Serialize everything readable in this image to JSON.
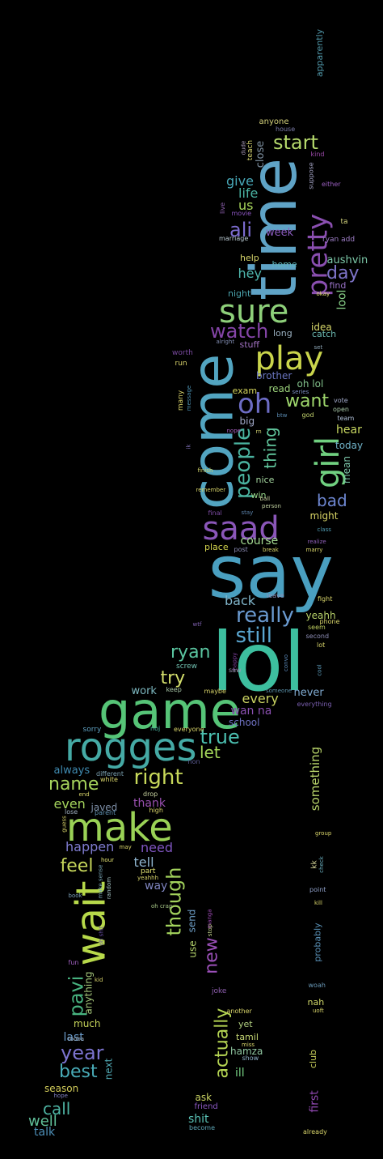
{
  "words": [
    {
      "text": "lol",
      "color": "#3dbf9f"
    },
    {
      "text": "say",
      "color": "#4a9fc0"
    },
    {
      "text": "come",
      "color": "#52a4c0"
    },
    {
      "text": "time",
      "color": "#5fa3c6"
    },
    {
      "text": "game",
      "color": "#56c477"
    },
    {
      "text": "rogges",
      "color": "#45aaa5"
    },
    {
      "text": "make",
      "color": "#9ad256"
    },
    {
      "text": "wait",
      "color": "#b7d94a"
    },
    {
      "text": "saad",
      "color": "#8a56b8"
    },
    {
      "text": "play",
      "color": "#cad54c"
    },
    {
      "text": "sure",
      "color": "#8ed07a"
    },
    {
      "text": "oh",
      "color": "#6c6cc4"
    },
    {
      "text": "pretty",
      "color": "#8a4fb0"
    },
    {
      "text": "girl",
      "color": "#70d080"
    },
    {
      "text": "people",
      "color": "#4ab3a0"
    },
    {
      "text": "watch",
      "color": "#8545a8"
    },
    {
      "text": "start",
      "color": "#b5d96c"
    },
    {
      "text": "ali",
      "color": "#7c6cd0"
    },
    {
      "text": "really",
      "color": "#6a9ad0"
    },
    {
      "text": "still",
      "color": "#5aa6d0"
    },
    {
      "text": "right",
      "color": "#c7d85a"
    },
    {
      "text": "true",
      "color": "#4bbfb0"
    },
    {
      "text": "name",
      "color": "#a5d35c"
    },
    {
      "text": "want",
      "color": "#9ed66c"
    },
    {
      "text": "thing",
      "color": "#61c79d"
    },
    {
      "text": "try",
      "color": "#d4df6c"
    },
    {
      "text": "ryan",
      "color": "#5ac5a0"
    },
    {
      "text": "year",
      "color": "#7c74d0"
    },
    {
      "text": "best",
      "color": "#48aab6"
    },
    {
      "text": "pavi",
      "color": "#47b27f"
    },
    {
      "text": "new",
      "color": "#9b50b8"
    },
    {
      "text": "actually",
      "color": "#b6d653"
    },
    {
      "text": "though",
      "color": "#a2d25c"
    },
    {
      "text": "feel",
      "color": "#c5d55a"
    },
    {
      "text": "day",
      "color": "#7e74c8"
    },
    {
      "text": "give",
      "color": "#48a8b8"
    },
    {
      "text": "us",
      "color": "#a7d55b"
    },
    {
      "text": "life",
      "color": "#4ab3a3"
    },
    {
      "text": "hey",
      "color": "#4fb6ad"
    },
    {
      "text": "bad",
      "color": "#6d86d0"
    },
    {
      "text": "let",
      "color": "#a3d65a"
    },
    {
      "text": "call",
      "color": "#4db3a2"
    },
    {
      "text": "well",
      "color": "#5fbe98"
    },
    {
      "text": "talk",
      "color": "#4d8fb8"
    },
    {
      "text": "something",
      "color": "#b7d36a"
    },
    {
      "text": "close",
      "color": "#7d8fa0"
    },
    {
      "text": "week",
      "color": "#8b5cc0"
    },
    {
      "text": "aushvin",
      "color": "#7cc8a8"
    },
    {
      "text": "lool",
      "color": "#8ad48a"
    },
    {
      "text": "home",
      "color": "#5fb5ba"
    },
    {
      "text": "find",
      "color": "#9a73c8"
    },
    {
      "text": "help",
      "color": "#d6d46a"
    },
    {
      "text": "night",
      "color": "#4ba3ad"
    },
    {
      "text": "long",
      "color": "#9ab0c0"
    },
    {
      "text": "idea",
      "color": "#d9d96a"
    },
    {
      "text": "catch",
      "color": "#6bb8b0"
    },
    {
      "text": "stuff",
      "color": "#a070c0"
    },
    {
      "text": "brother",
      "color": "#6a75c0"
    },
    {
      "text": "oh lol",
      "color": "#82c08a"
    },
    {
      "text": "read",
      "color": "#9bd27b"
    },
    {
      "text": "exam",
      "color": "#d3d35a"
    },
    {
      "text": "big",
      "color": "#a0a8c8"
    },
    {
      "text": "hear",
      "color": "#c9d861"
    },
    {
      "text": "today",
      "color": "#6fb2c8"
    },
    {
      "text": "mean",
      "color": "#7cc4a8"
    },
    {
      "text": "nice",
      "color": "#a5d7a0"
    },
    {
      "text": "win",
      "color": "#97d78a"
    },
    {
      "text": "might",
      "color": "#d8d465"
    },
    {
      "text": "course",
      "color": "#a2d890"
    },
    {
      "text": "place",
      "color": "#d3d34d"
    },
    {
      "text": "back",
      "color": "#7fb3c8"
    },
    {
      "text": "yeahh",
      "color": "#b9d36a"
    },
    {
      "text": "work",
      "color": "#7db8c0"
    },
    {
      "text": "every",
      "color": "#c9d261"
    },
    {
      "text": "never",
      "color": "#7faad0"
    },
    {
      "text": "wan na",
      "color": "#8a50b0"
    },
    {
      "text": "school",
      "color": "#6d70c0"
    },
    {
      "text": "always",
      "color": "#3f8ab0"
    },
    {
      "text": "even",
      "color": "#a4d35c"
    },
    {
      "text": "javed",
      "color": "#7e8fa8"
    },
    {
      "text": "thank",
      "color": "#9a50b0"
    },
    {
      "text": "happen",
      "color": "#7f7cd0"
    },
    {
      "text": "need",
      "color": "#7f55c0"
    },
    {
      "text": "tell",
      "color": "#8fb5d0"
    },
    {
      "text": "way",
      "color": "#7f85c0"
    },
    {
      "text": "send",
      "color": "#6fa0c8"
    },
    {
      "text": "use",
      "color": "#b0d06a"
    },
    {
      "text": "anything",
      "color": "#a4c67a"
    },
    {
      "text": "much",
      "color": "#c5d35a"
    },
    {
      "text": "last",
      "color": "#6a9ac8"
    },
    {
      "text": "next",
      "color": "#4fa6b0"
    },
    {
      "text": "season",
      "color": "#d2cc5a"
    },
    {
      "text": "ask",
      "color": "#c9d262"
    },
    {
      "text": "shit",
      "color": "#5ac2b5"
    },
    {
      "text": "ill",
      "color": "#74cc80"
    },
    {
      "text": "tamil",
      "color": "#c4d572"
    },
    {
      "text": "hamza",
      "color": "#8fc6a0"
    },
    {
      "text": "yet",
      "color": "#b2d080"
    },
    {
      "text": "nah",
      "color": "#cfd668"
    },
    {
      "text": "first",
      "color": "#9048b0"
    },
    {
      "text": "probably",
      "color": "#5a92b8"
    },
    {
      "text": "club",
      "color": "#c8cf5a"
    },
    {
      "text": "anyone",
      "color": "#d4d17a"
    },
    {
      "text": "apparently",
      "color": "#5096a8"
    },
    {
      "text": "house",
      "color": "#7b7ba8"
    },
    {
      "text": "kind",
      "color": "#9a48a8"
    },
    {
      "text": "teach",
      "color": "#d6d470"
    },
    {
      "text": "dude",
      "color": "#b0a0c0"
    },
    {
      "text": "suppose",
      "color": "#a0a0c0"
    },
    {
      "text": "either",
      "color": "#9a5fc0"
    },
    {
      "text": "ta",
      "color": "#d0d07a"
    },
    {
      "text": "ryan add",
      "color": "#9f7fc8"
    },
    {
      "text": "live",
      "color": "#8f60b0"
    },
    {
      "text": "movie",
      "color": "#8b55c0"
    },
    {
      "text": "marriage",
      "color": "#b8c8d0"
    },
    {
      "text": "okay",
      "color": "#e0e070"
    },
    {
      "text": "alright",
      "color": "#808cb0"
    },
    {
      "text": "set",
      "color": "#8fa8b8"
    },
    {
      "text": "worth",
      "color": "#7a4aa0"
    },
    {
      "text": "run",
      "color": "#d8d26a"
    },
    {
      "text": "many",
      "color": "#d8d26a"
    },
    {
      "text": "message",
      "color": "#4b8fb0"
    },
    {
      "text": "series",
      "color": "#7b8dc0"
    },
    {
      "text": "vote",
      "color": "#a0a8c8"
    },
    {
      "text": "open",
      "color": "#a8c8a8"
    },
    {
      "text": "god",
      "color": "#c8d870"
    },
    {
      "text": "team",
      "color": "#b0c0d8"
    },
    {
      "text": "nope",
      "color": "#a860c0"
    },
    {
      "text": "rn",
      "color": "#d0d070"
    },
    {
      "text": "btw",
      "color": "#5a8ab0"
    },
    {
      "text": "ik",
      "color": "#7f70b8"
    },
    {
      "text": "finish",
      "color": "#cfd26a"
    },
    {
      "text": "remember",
      "color": "#d8d46a"
    },
    {
      "text": "ball",
      "color": "#c8d0a0"
    },
    {
      "text": "person",
      "color": "#c0d0a0"
    },
    {
      "text": "stay",
      "color": "#5a80a8"
    },
    {
      "text": "final",
      "color": "#7a4aa0"
    },
    {
      "text": "class",
      "color": "#4f9ab0"
    },
    {
      "text": "realize",
      "color": "#8f5fb8"
    },
    {
      "text": "marry",
      "color": "#d8d46a"
    },
    {
      "text": "post",
      "color": "#8f8fb8"
    },
    {
      "text": "break",
      "color": "#d8d46a"
    },
    {
      "text": "leave",
      "color": "#8f8fb8"
    },
    {
      "text": "fight",
      "color": "#d8d46a"
    },
    {
      "text": "phone",
      "color": "#d8d46a"
    },
    {
      "text": "seem",
      "color": "#c0d060"
    },
    {
      "text": "second",
      "color": "#8f8fb8"
    },
    {
      "text": "lot",
      "color": "#d8d46a"
    },
    {
      "text": "cool",
      "color": "#5fa0c0"
    },
    {
      "text": "convo",
      "color": "#5a88b8"
    },
    {
      "text": "happy",
      "color": "#8040a0"
    },
    {
      "text": "saw",
      "color": "#a09ab8"
    },
    {
      "text": "wtf",
      "color": "#7f60b0"
    },
    {
      "text": "screw",
      "color": "#70c0b0"
    },
    {
      "text": "someone",
      "color": "#5a90a8"
    },
    {
      "text": "keep",
      "color": "#a8c8a8"
    },
    {
      "text": "maybe",
      "color": "#d8d46a"
    },
    {
      "text": "everything",
      "color": "#7a5fb0"
    },
    {
      "text": "sorry",
      "color": "#5fa0c0"
    },
    {
      "text": "noj",
      "color": "#4ab3a0"
    },
    {
      "text": "everyone",
      "color": "#d8d46a"
    },
    {
      "text": "non",
      "color": "#5a5a90"
    },
    {
      "text": "different",
      "color": "#7aa0b0"
    },
    {
      "text": "white",
      "color": "#d8d46a"
    },
    {
      "text": "drop",
      "color": "#c8d4a0"
    },
    {
      "text": "end",
      "color": "#d8d46a"
    },
    {
      "text": "lose",
      "color": "#9fb0c0"
    },
    {
      "text": "parent",
      "color": "#5f8fb0"
    },
    {
      "text": "high",
      "color": "#d8d46a"
    },
    {
      "text": "guess",
      "color": "#d8d46a"
    },
    {
      "text": "may",
      "color": "#d8d46a"
    },
    {
      "text": "group",
      "color": "#d8d46a"
    },
    {
      "text": "kk",
      "color": "#e0e0a0"
    },
    {
      "text": "check",
      "color": "#6ab0c0"
    },
    {
      "text": "hour",
      "color": "#e0e070"
    },
    {
      "text": "part",
      "color": "#e0e070"
    },
    {
      "text": "yeahhh",
      "color": "#d8d46a"
    },
    {
      "text": "random",
      "color": "#a8c8c8"
    },
    {
      "text": "make sense",
      "color": "#7aa8b8"
    },
    {
      "text": "point",
      "color": "#8fa0c8"
    },
    {
      "text": "kill",
      "color": "#d8d46a"
    },
    {
      "text": "book",
      "color": "#7a9fb8"
    },
    {
      "text": "oh shit",
      "color": "#6a50a8"
    },
    {
      "text": "oh crap",
      "color": "#a8c888"
    },
    {
      "text": "stop",
      "color": "#c8d890"
    },
    {
      "text": "manga",
      "color": "#9a48b0"
    },
    {
      "text": "fun",
      "color": "#a060c0"
    },
    {
      "text": "kid",
      "color": "#d8d46a"
    },
    {
      "text": "woah",
      "color": "#6a9ab8"
    },
    {
      "text": "uoft",
      "color": "#d8d46a"
    },
    {
      "text": "joke",
      "color": "#8f5fb0"
    },
    {
      "text": "another",
      "color": "#d8d46a"
    },
    {
      "text": "miss",
      "color": "#d8d46a"
    },
    {
      "text": "show",
      "color": "#8fb0c8"
    },
    {
      "text": "tooba",
      "color": "#9fb0c0"
    },
    {
      "text": "hope",
      "color": "#7f7fc0"
    },
    {
      "text": "friend",
      "color": "#8a58c0"
    },
    {
      "text": "become",
      "color": "#5fa8b8"
    },
    {
      "text": "already",
      "color": "#d8d46a"
    },
    {
      "text": "wed",
      "color": "#e0e070"
    }
  ]
}
